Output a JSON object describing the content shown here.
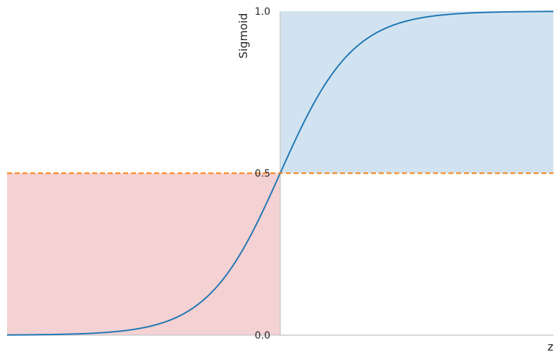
{
  "chart_data": {
    "type": "line",
    "title": "",
    "xlabel": "z",
    "ylabel": "Sigmoid",
    "xlim": [
      -7.5,
      7.5
    ],
    "ylim": [
      0,
      1
    ],
    "yticks": [
      {
        "value": 0.0,
        "label": "0.0"
      },
      {
        "value": 0.5,
        "label": "0.5"
      },
      {
        "value": 1.0,
        "label": "1.0"
      }
    ],
    "grid": false,
    "series": [
      {
        "function": "sigmoid",
        "x_range": [
          -7.5,
          7.5
        ],
        "color": "#1f77b4"
      }
    ],
    "reference_lines": [
      {
        "orientation": "horizontal",
        "y": 0.5,
        "style": "dashed",
        "color": "#ff7f0e"
      }
    ],
    "shaded_regions": [
      {
        "x": [
          -7.5,
          0
        ],
        "y": [
          0,
          0.5
        ],
        "color": "#f4d1d3"
      },
      {
        "x": [
          0,
          7.5
        ],
        "y": [
          0.5,
          1.0
        ],
        "color": "#d1e3f0"
      }
    ],
    "axis_color": "#cccccc"
  }
}
